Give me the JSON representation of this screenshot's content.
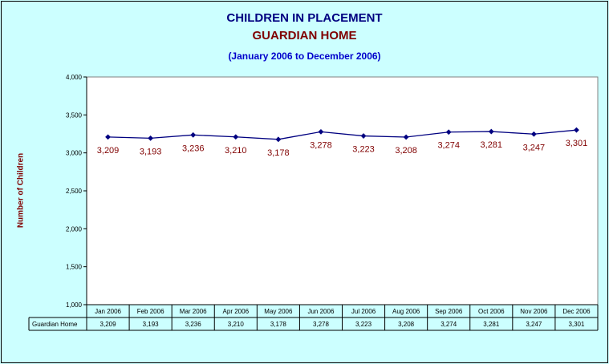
{
  "title": "CHILDREN IN PLACEMENT",
  "subtitle": "GUARDIAN HOME",
  "period": "(January 2006 to December 2006)",
  "colors": {
    "background": "#ccffff",
    "line": "#000080",
    "marker": "#000080",
    "data_label": "#800000",
    "title": "#000080",
    "subtitle": "#800000",
    "period": "#0000cc"
  },
  "chart_data": {
    "type": "line",
    "title": "CHILDREN IN PLACEMENT",
    "subtitle": "GUARDIAN HOME",
    "xlabel": "",
    "ylabel": "Number of Children",
    "ylim": [
      1000,
      4000
    ],
    "yticks": [
      "1,000",
      "1,500",
      "2,000",
      "2,500",
      "3,000",
      "3,500",
      "4,000"
    ],
    "ytick_values": [
      1000,
      1500,
      2000,
      2500,
      3000,
      3500,
      4000
    ],
    "grid": false,
    "legend": "data-table",
    "categories": [
      "Jan 2006",
      "Feb 2006",
      "Mar 2006",
      "Apr 2006",
      "May 2006",
      "Jun 2006",
      "Jul 2006",
      "Aug 2006",
      "Sep 2006",
      "Oct 2006",
      "Nov 2006",
      "Dec 2006"
    ],
    "series": [
      {
        "name": "Guardian Home",
        "values": [
          3209,
          3193,
          3236,
          3210,
          3178,
          3278,
          3223,
          3208,
          3274,
          3281,
          3247,
          3301
        ],
        "labels": [
          "3,209",
          "3,193",
          "3,236",
          "3,210",
          "3,178",
          "3,278",
          "3,223",
          "3,208",
          "3,274",
          "3,281",
          "3,247",
          "3,301"
        ]
      }
    ]
  }
}
